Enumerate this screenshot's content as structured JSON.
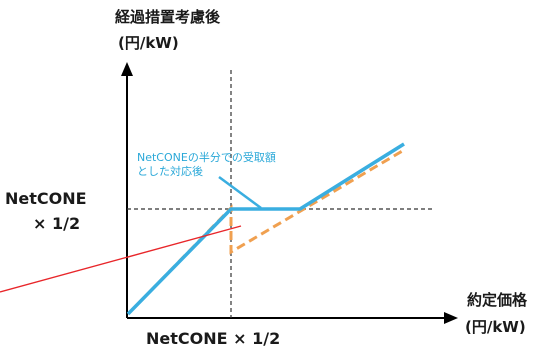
{
  "y_axis": {
    "title": "経過措置考慮後",
    "unit": "(円/kW)"
  },
  "x_axis": {
    "title": "約定価格",
    "unit": "(円/kW)"
  },
  "y_marker": {
    "line1": "NetCONE",
    "line2": "× 1/2"
  },
  "x_marker": {
    "label": "NetCONE × 1/2"
  },
  "annotation": {
    "line1": "NetCONEの半分での受取額",
    "line2": "とした対応後"
  },
  "colors": {
    "after_line": "#3aaee0",
    "before_line": "#f0a050",
    "pointer_line": "#e8262a",
    "axis": "#000000",
    "guide": "#333333",
    "note_text": "#2aa8d8"
  },
  "icons": {
    "axis_arrows": "arrow-head-icon"
  }
}
